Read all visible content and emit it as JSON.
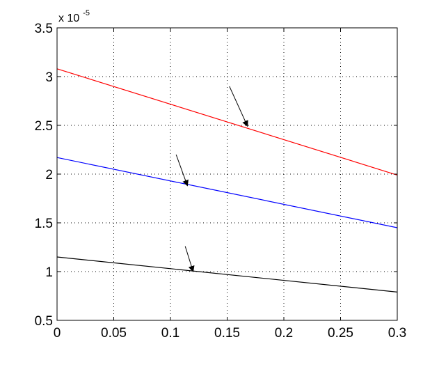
{
  "chart_data": {
    "type": "line",
    "title": "",
    "xlabel": "",
    "ylabel": "",
    "xlim": [
      0,
      0.3
    ],
    "ylim": [
      0.5,
      3.5
    ],
    "x_ticks": [
      "0",
      "0.05",
      "0.1",
      "0.15",
      "0.2",
      "0.25",
      "0.3"
    ],
    "y_ticks": [
      "0.5",
      "1",
      "1.5",
      "2",
      "2.5",
      "3",
      "3.5"
    ],
    "y_multiplier_base": "x 10",
    "y_multiplier_exponent": "-5",
    "grid": true,
    "grid_style": "dotted",
    "legend": "none",
    "series": [
      {
        "color": "#ff0000",
        "x": [
          0,
          0.3
        ],
        "y": [
          3.08,
          1.99
        ]
      },
      {
        "color": "#0000ff",
        "x": [
          0,
          0.3
        ],
        "y": [
          2.17,
          1.45
        ]
      },
      {
        "color": "#000000",
        "x": [
          0,
          0.3
        ],
        "y": [
          1.15,
          0.79
        ]
      }
    ],
    "annotations": [
      {
        "type": "arrow",
        "from": [
          0.152,
          2.9
        ],
        "to": [
          0.168,
          2.49
        ]
      },
      {
        "type": "arrow",
        "from": [
          0.105,
          2.2
        ],
        "to": [
          0.115,
          1.88
        ]
      },
      {
        "type": "arrow",
        "from": [
          0.113,
          1.26
        ],
        "to": [
          0.12,
          1.0
        ]
      }
    ]
  }
}
